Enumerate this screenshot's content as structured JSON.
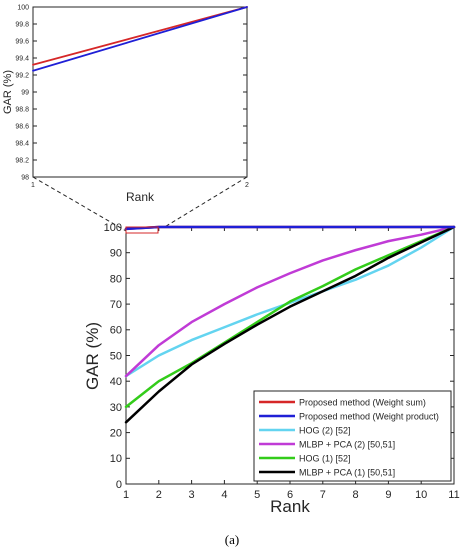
{
  "chart_data": [
    {
      "type": "line",
      "role": "inset-zoom",
      "xlabel": "Rank",
      "ylabel": "GAR (%)",
      "xlim": [
        1,
        2
      ],
      "ylim": [
        98,
        100
      ],
      "x_ticks": [
        "1",
        "2"
      ],
      "y_ticks": [
        "98",
        "98.2",
        "98.4",
        "98.6",
        "98.8",
        "99",
        "99.2",
        "99.4",
        "99.6",
        "99.8",
        "100"
      ],
      "grid": false,
      "series": [
        {
          "name": "Proposed method (Weight sum)",
          "color": "#d62728",
          "x": [
            1,
            2
          ],
          "y": [
            99.32,
            100
          ]
        },
        {
          "name": "Proposed method (Weight product)",
          "color": "#1f1fd6",
          "x": [
            1,
            2
          ],
          "y": [
            99.25,
            100
          ]
        }
      ]
    },
    {
      "type": "line",
      "role": "main",
      "xlabel": "Rank",
      "ylabel": "GAR (%)",
      "xlim": [
        1,
        11
      ],
      "ylim": [
        0,
        100
      ],
      "x_ticks": [
        "1",
        "2",
        "3",
        "4",
        "5",
        "6",
        "7",
        "8",
        "9",
        "10",
        "11"
      ],
      "y_ticks": [
        "0",
        "10",
        "20",
        "30",
        "40",
        "50",
        "60",
        "70",
        "80",
        "90",
        "100"
      ],
      "grid": false,
      "legend_position": "bottom-right",
      "series": [
        {
          "name": "Proposed method (Weight sum)",
          "color": "#d62728",
          "x": [
            1,
            2,
            3,
            4,
            5,
            6,
            7,
            8,
            9,
            10,
            11
          ],
          "y": [
            99.32,
            100,
            100,
            100,
            100,
            100,
            100,
            100,
            100,
            100,
            100
          ]
        },
        {
          "name": "Proposed method (Weight product)",
          "color": "#1f1fd6",
          "x": [
            1,
            2,
            3,
            4,
            5,
            6,
            7,
            8,
            9,
            10,
            11
          ],
          "y": [
            99.25,
            100,
            100,
            100,
            100,
            100,
            100,
            100,
            100,
            100,
            100
          ]
        },
        {
          "name": "HOG (2) [52]",
          "color": "#63d4f0",
          "x": [
            1,
            2,
            3,
            4,
            5,
            6,
            7,
            8,
            9,
            10,
            11
          ],
          "y": [
            42,
            50,
            56,
            61,
            66,
            70.5,
            75,
            79.5,
            85,
            92,
            100
          ]
        },
        {
          "name": "MLBP + PCA (2) [50,51]",
          "color": "#c03bd6",
          "x": [
            1,
            2,
            3,
            4,
            5,
            6,
            7,
            8,
            9,
            10,
            11
          ],
          "y": [
            42,
            54,
            63,
            70,
            76.5,
            82,
            87,
            91,
            94.5,
            97,
            100
          ]
        },
        {
          "name": "HOG (1) [52]",
          "color": "#33cc1a",
          "x": [
            1,
            2,
            3,
            4,
            5,
            6,
            7,
            8,
            9,
            10,
            11
          ],
          "y": [
            30,
            40,
            47,
            55,
            63,
            71,
            77,
            83.5,
            89,
            94.5,
            100
          ]
        },
        {
          "name": "MLBP + PCA (1) [50,51]",
          "color": "#000000",
          "x": [
            1,
            2,
            3,
            4,
            5,
            6,
            7,
            8,
            9,
            10,
            11
          ],
          "y": [
            24,
            36,
            46.5,
            54.5,
            62,
            69,
            75,
            81,
            88,
            94,
            100
          ]
        }
      ]
    }
  ],
  "caption": "(a)"
}
